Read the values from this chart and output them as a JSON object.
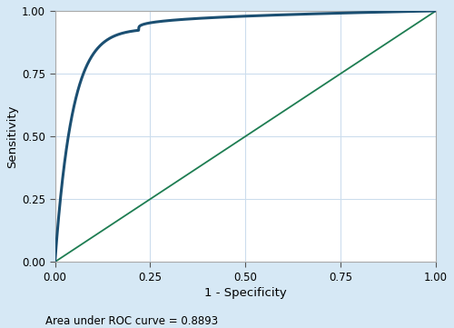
{
  "auc": 0.8893,
  "xlabel": "1 - Specificity",
  "ylabel": "Sensitivity",
  "annotation": "Area under ROC curve = 0.8893",
  "xlim": [
    0.0,
    1.0
  ],
  "ylim": [
    0.0,
    1.0
  ],
  "xticks": [
    0.0,
    0.25,
    0.5,
    0.75,
    1.0
  ],
  "yticks": [
    0.0,
    0.25,
    0.5,
    0.75,
    1.0
  ],
  "roc_color": "#1b4f72",
  "diag_color": "#1e7d52",
  "figure_bg_color": "#d6e8f5",
  "plot_bg_color": "#ffffff",
  "grid_color": "#ccdded",
  "roc_linewidth": 2.2,
  "diag_linewidth": 1.3,
  "figsize": [
    5.0,
    3.61
  ],
  "dpi": 100,
  "tick_fontsize": 8.5,
  "label_fontsize": 9.5,
  "annotation_fontsize": 8.5,
  "spine_color": "#aaaaaa"
}
